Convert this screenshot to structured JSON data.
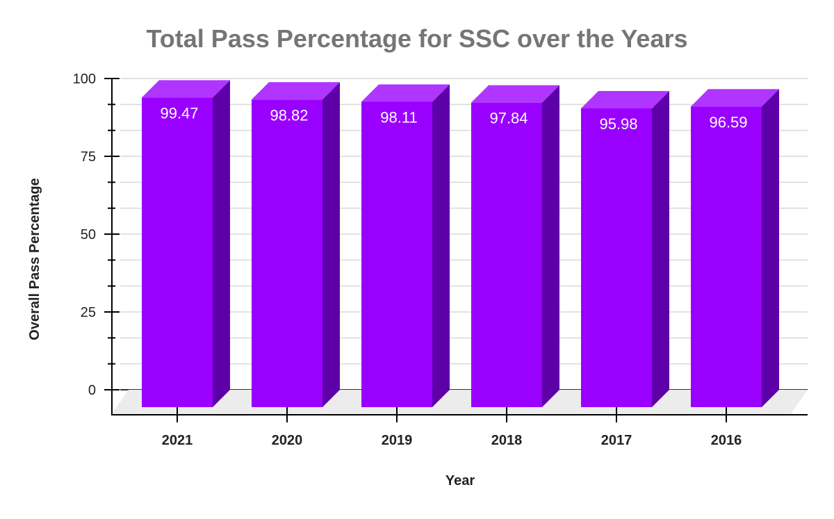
{
  "chart_data": {
    "type": "bar",
    "title": "Total Pass Percentage for SSC over the Years",
    "xlabel": "Year",
    "ylabel": "Overall Pass Percentage",
    "categories": [
      "2021",
      "2020",
      "2019",
      "2018",
      "2017",
      "2016"
    ],
    "values": [
      99.47,
      98.82,
      98.11,
      97.84,
      95.98,
      96.59
    ],
    "data_labels": [
      "99.47",
      "98.82",
      "98.11",
      "97.84",
      "95.98",
      "96.59"
    ],
    "ylim": [
      0,
      100
    ],
    "yticks": [
      "0",
      "25",
      "50",
      "75",
      "100"
    ],
    "grid": true,
    "style": "3d-column",
    "colors": {
      "front": "#9900ff",
      "top": "#b035ff",
      "side": "#5e00a8",
      "floor": "#ececec",
      "title": "#757575"
    }
  }
}
